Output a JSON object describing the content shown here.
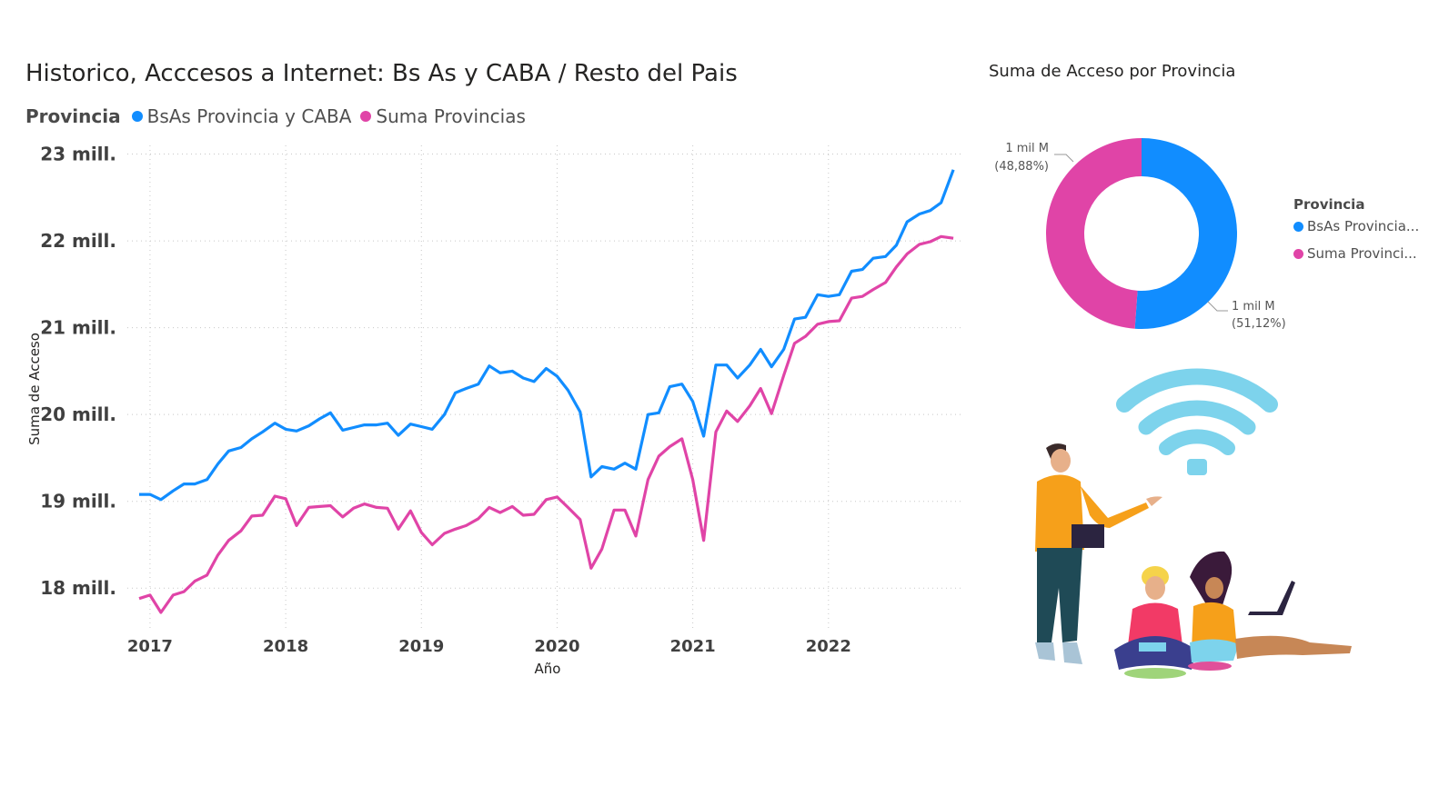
{
  "chart_data": [
    {
      "type": "line",
      "title": "Historico, Acccesos a Internet: Bs As y CABA / Resto del Pais",
      "legend_title": "Provincia",
      "legend_position": "top-left",
      "xlabel": "Año",
      "ylabel": "Suma de Acceso",
      "grid": true,
      "x_ticks": [
        2017,
        2018,
        2019,
        2020,
        2021,
        2022
      ],
      "y_ticks": [
        {
          "value": 18,
          "label": "18 mill."
        },
        {
          "value": 19,
          "label": "19 mill."
        },
        {
          "value": 20,
          "label": "20 mill."
        },
        {
          "value": 21,
          "label": "21 mill."
        },
        {
          "value": 22,
          "label": "22 mill."
        },
        {
          "value": 23,
          "label": "23 mill."
        }
      ],
      "xlim": [
        2016.9,
        2023.0
      ],
      "ylim": [
        17.5,
        23.1
      ],
      "x": [
        2016.92,
        2017.0,
        2017.08,
        2017.17,
        2017.25,
        2017.33,
        2017.42,
        2017.5,
        2017.58,
        2017.67,
        2017.75,
        2017.83,
        2017.92,
        2018.0,
        2018.08,
        2018.17,
        2018.25,
        2018.33,
        2018.42,
        2018.5,
        2018.58,
        2018.67,
        2018.75,
        2018.83,
        2018.92,
        2019.0,
        2019.08,
        2019.17,
        2019.25,
        2019.33,
        2019.42,
        2019.5,
        2019.58,
        2019.67,
        2019.75,
        2019.83,
        2019.92,
        2020.0,
        2020.08,
        2020.17,
        2020.25,
        2020.33,
        2020.42,
        2020.5,
        2020.58,
        2020.67,
        2020.75,
        2020.83,
        2020.92,
        2021.0,
        2021.08,
        2021.17,
        2021.25,
        2021.33,
        2021.42,
        2021.5,
        2021.58,
        2021.67,
        2021.75,
        2021.83,
        2021.92,
        2022.0,
        2022.08,
        2022.17,
        2022.25,
        2022.33,
        2022.42,
        2022.5,
        2022.58,
        2022.67,
        2022.75,
        2022.83,
        2022.92
      ],
      "series": [
        {
          "name": "BsAs Provincia y CABA",
          "color": "#118DFF",
          "values": [
            19.08,
            19.08,
            19.02,
            19.12,
            19.2,
            19.2,
            19.25,
            19.43,
            19.58,
            19.62,
            19.72,
            19.8,
            19.9,
            19.83,
            19.81,
            19.87,
            19.95,
            20.02,
            19.82,
            19.85,
            19.88,
            19.88,
            19.9,
            19.76,
            19.89,
            19.86,
            19.83,
            20.0,
            20.25,
            20.3,
            20.35,
            20.56,
            20.48,
            20.5,
            20.42,
            20.38,
            20.53,
            20.44,
            20.28,
            20.03,
            19.28,
            19.4,
            19.37,
            19.44,
            19.37,
            20.0,
            20.02,
            20.32,
            20.35,
            20.15,
            19.75,
            20.57,
            20.57,
            20.42,
            20.57,
            20.75,
            20.55,
            20.75,
            21.1,
            21.12,
            21.38,
            21.36,
            21.38,
            21.65,
            21.67,
            21.8,
            21.82,
            21.95,
            22.22,
            22.31,
            22.35,
            22.44,
            22.82
          ]
        },
        {
          "name": "Suma Provincias",
          "color": "#E044A7",
          "values": [
            17.88,
            17.92,
            17.72,
            17.92,
            17.96,
            18.08,
            18.15,
            18.38,
            18.55,
            18.66,
            18.83,
            18.84,
            19.06,
            19.03,
            18.72,
            18.93,
            18.94,
            18.95,
            18.82,
            18.92,
            18.97,
            18.93,
            18.92,
            18.68,
            18.89,
            18.64,
            18.5,
            18.63,
            18.68,
            18.72,
            18.8,
            18.93,
            18.87,
            18.94,
            18.84,
            18.85,
            19.02,
            19.05,
            18.93,
            18.79,
            18.23,
            18.45,
            18.9,
            18.9,
            18.6,
            19.25,
            19.52,
            19.63,
            19.72,
            19.25,
            18.55,
            19.8,
            20.04,
            19.92,
            20.1,
            20.3,
            20.01,
            20.45,
            20.82,
            20.9,
            21.04,
            21.07,
            21.08,
            21.34,
            21.36,
            21.44,
            21.52,
            21.7,
            21.85,
            21.96,
            21.99,
            22.05,
            22.03
          ]
        }
      ]
    },
    {
      "type": "pie",
      "variant": "donut",
      "title": "Suma de Acceso por Provincia",
      "legend_title": "Provincia",
      "legend_position": "right",
      "slices": [
        {
          "name": "BsAs Provincia y CABA",
          "legend_label": "BsAs Provincia...",
          "value": 51.12,
          "label_value": "1 mil M",
          "label_pct": "(51,12%)",
          "color": "#118DFF"
        },
        {
          "name": "Suma Provincias",
          "legend_label": "Suma Provinci...",
          "value": 48.88,
          "label_value": "1 mil M",
          "label_pct": "(48,88%)",
          "color": "#E044A7"
        }
      ]
    }
  ]
}
